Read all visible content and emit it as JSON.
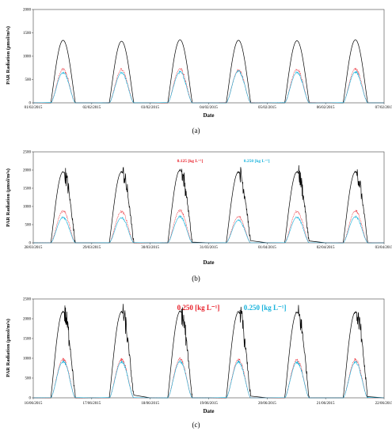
{
  "chart_data": [
    {
      "type": "line",
      "caption": "(a)",
      "ylabel": "PAR Radiation (μmol/m²s)",
      "xlabel": "Date",
      "ylim": [
        0,
        2000
      ],
      "yticks": [
        "0",
        "500",
        "1000",
        "1500",
        "2000"
      ],
      "x_tick_labels": [
        "01/02/2015",
        "02/02/2015",
        "03/02/2015",
        "04/02/2015",
        "05/02/2015",
        "06/02/2015",
        "07/02/2015"
      ],
      "legend": [],
      "days": 6,
      "daily_peaks": {
        "outside": 1340,
        "red": 720,
        "cyan": 650
      },
      "grid": false,
      "series": [
        {
          "color": "#000000",
          "values": [
            1340,
            1320,
            1350,
            1340,
            1330,
            1350
          ]
        },
        {
          "color": "#e8202a",
          "values": [
            720,
            710,
            730,
            700,
            720,
            730
          ]
        },
        {
          "color": "#19b3dc",
          "values": [
            650,
            640,
            660,
            680,
            650,
            660
          ]
        }
      ]
    },
    {
      "type": "line",
      "caption": "(b)",
      "ylabel": "PAR Radiation (μmol/m²s)",
      "xlabel": "Date",
      "ylim": [
        0,
        2500
      ],
      "yticks": [
        "0",
        "500",
        "1000",
        "1500",
        "2000",
        "2500"
      ],
      "x_tick_labels": [
        "28/03/2015",
        "29/03/2015",
        "30/03/2015",
        "31/03/2015",
        "01/04/2015",
        "02/04/2015",
        "03/04/2015"
      ],
      "legend": [
        "0.125 [kg L⁻¹]",
        "0.250 [kg L⁻¹]"
      ],
      "days": 6,
      "grid": false,
      "series": [
        {
          "color": "#000000",
          "values": [
            1950,
            1950,
            2000,
            1950,
            1950,
            1950
          ]
        },
        {
          "color": "#e8202a",
          "values": [
            880,
            860,
            900,
            720,
            860,
            880
          ]
        },
        {
          "color": "#19b3dc",
          "values": [
            700,
            690,
            720,
            620,
            700,
            720
          ]
        }
      ]
    },
    {
      "type": "line",
      "caption": "(c)",
      "ylabel": "PAR Radiation (μmol/m²s)",
      "xlabel": "Date",
      "ylim": [
        0,
        2500
      ],
      "yticks": [
        "0",
        "500",
        "1000",
        "1500",
        "2000",
        "2500"
      ],
      "x_tick_labels": [
        "16/06/2015",
        "17/06/2015",
        "18/06/2015",
        "19/06/2015",
        "20/06/2015",
        "21/06/2015",
        "22/06/2015"
      ],
      "legend": [
        "0.250 [kg L⁻¹]",
        "0.250 [kg L⁻¹]"
      ],
      "days": 6,
      "grid": false,
      "series": [
        {
          "color": "#000000",
          "values": [
            2180,
            2170,
            2180,
            2170,
            2160,
            2170
          ]
        },
        {
          "color": "#e8202a",
          "values": [
            980,
            970,
            980,
            970,
            960,
            960
          ]
        },
        {
          "color": "#19b3dc",
          "values": [
            920,
            910,
            920,
            910,
            900,
            900
          ]
        }
      ]
    }
  ]
}
